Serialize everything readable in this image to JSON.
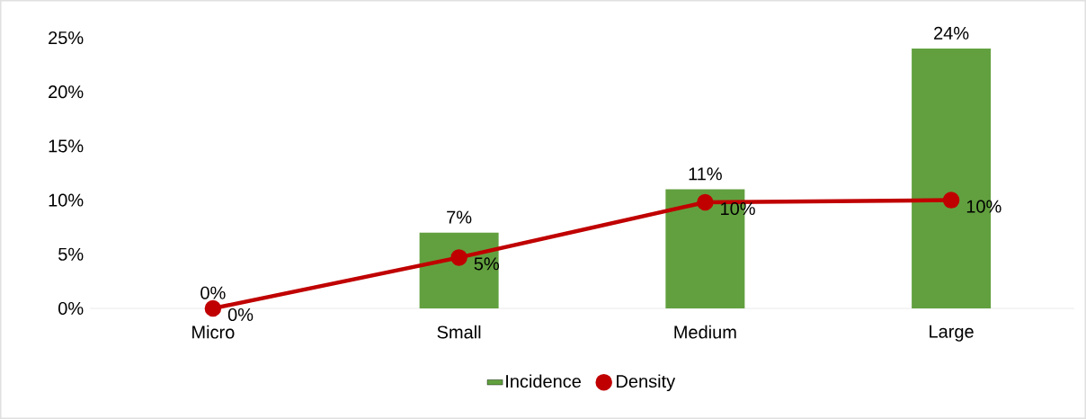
{
  "chart_data": {
    "type": "bar",
    "categories": [
      "Micro",
      "Small",
      "Medium",
      "Large"
    ],
    "series": [
      {
        "name": "Incidence",
        "color": "#62a03f",
        "values": [
          0,
          7,
          11,
          24
        ],
        "value_labels": [
          "0%",
          "7%",
          "11%",
          "24%"
        ]
      },
      {
        "name": "Density",
        "type": "line",
        "color": "#c00000",
        "marker": "circle",
        "values": [
          0,
          4.7,
          9.8,
          10
        ],
        "value_labels": [
          "0%",
          "5%",
          "10%",
          "10%"
        ]
      }
    ],
    "ylim": [
      0,
      25
    ],
    "yticks": [
      {
        "value": 0,
        "label": "0%"
      },
      {
        "value": 5,
        "label": "5%"
      },
      {
        "value": 10,
        "label": "10%"
      },
      {
        "value": 15,
        "label": "15%"
      },
      {
        "value": 20,
        "label": "20%"
      },
      {
        "value": 25,
        "label": "25%"
      }
    ],
    "grid": false,
    "legend": "bottom"
  }
}
